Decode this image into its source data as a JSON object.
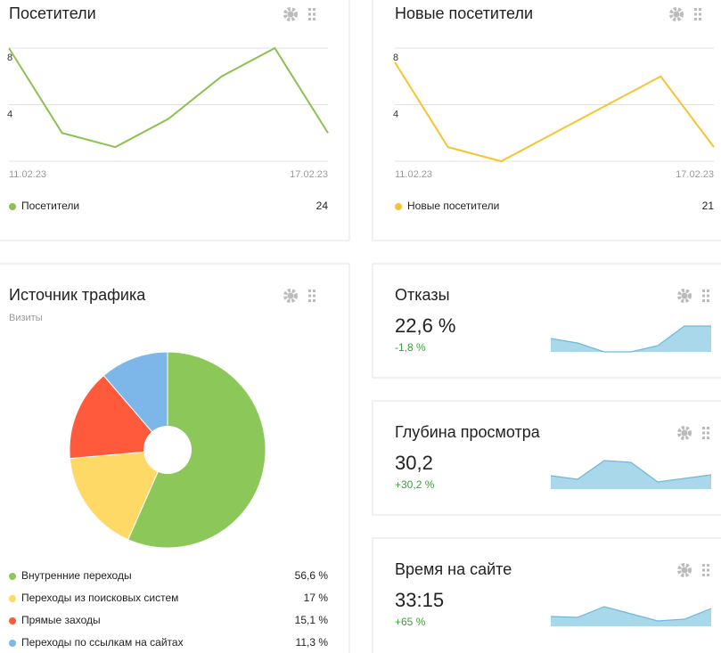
{
  "chart_data": [
    {
      "type": "line",
      "title": "Посетители",
      "categories": [
        "11.02.23",
        null,
        null,
        null,
        null,
        null,
        "17.02.23"
      ],
      "series": [
        {
          "name": "Посетители",
          "color": "#8cc152",
          "values": [
            8,
            2,
            1,
            3,
            6,
            8,
            2
          ]
        }
      ],
      "total": 24,
      "ylim": [
        0,
        8
      ],
      "yticks": [
        4,
        8
      ],
      "grid": true
    },
    {
      "type": "line",
      "title": "Новые посетители",
      "categories": [
        "11.02.23",
        null,
        null,
        null,
        null,
        null,
        "17.02.23"
      ],
      "series": [
        {
          "name": "Новые посетители",
          "color": "#f5c431",
          "values": [
            7,
            1,
            0,
            2,
            4,
            6,
            1
          ]
        }
      ],
      "total": 21,
      "ylim": [
        0,
        8
      ],
      "yticks": [
        4,
        8
      ],
      "grid": true
    },
    {
      "type": "pie",
      "title": "Источник трафика",
      "subtitle": "Визиты",
      "categories": [
        "Внутренние переходы",
        "Переходы из поисковых систем",
        "Прямые заходы",
        "Переходы по ссылкам на сайтах"
      ],
      "values": [
        56.6,
        17,
        15.1,
        11.3
      ],
      "value_labels": [
        "56,6 %",
        "17 %",
        "15,1 %",
        "11,3 %"
      ],
      "colors": [
        "#8cc75a",
        "#ffd966",
        "#ff5a3c",
        "#7db6e8"
      ]
    },
    {
      "type": "sparkline",
      "title": "Отказы",
      "value": "22,6 %",
      "change": "-1,8 %",
      "change_color": "#3a9e3a",
      "color": "#a8d8ea",
      "values": [
        15,
        10,
        0,
        0,
        7,
        29,
        29
      ]
    },
    {
      "type": "sparkline",
      "title": "Глубина просмотра",
      "value": "30,2",
      "change": "+30,2 %",
      "change_color": "#3a9e3a",
      "color": "#a8d8ea",
      "values": [
        15,
        11,
        32,
        30,
        8,
        12,
        16
      ]
    },
    {
      "type": "sparkline",
      "title": "Время на сайте",
      "value": "33:15",
      "change": "+65 %",
      "change_color": "#3a9e3a",
      "color": "#a8d8ea",
      "values": [
        11,
        10,
        22,
        14,
        6,
        8,
        20
      ]
    }
  ]
}
